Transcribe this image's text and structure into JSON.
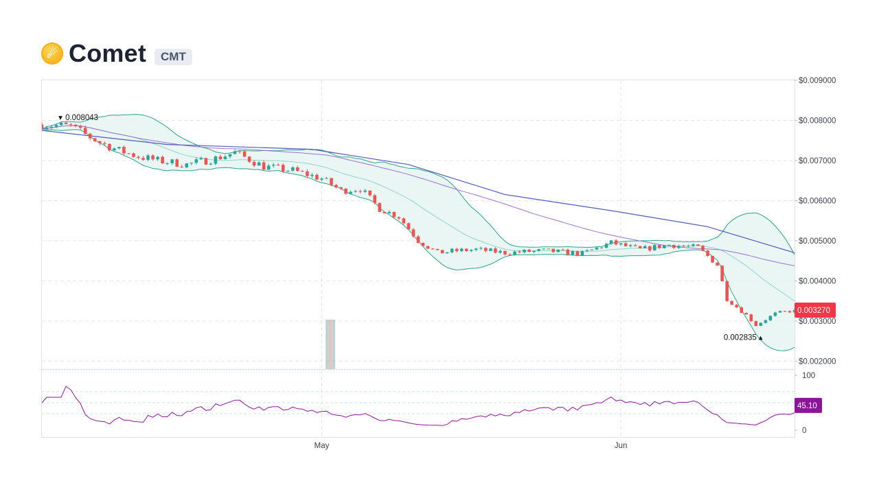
{
  "header": {
    "name": "Comet",
    "symbol": "CMT",
    "logo_icon": "comet-coin-icon"
  },
  "chart_data": {
    "type": "candlestick",
    "price_axis": {
      "ylim": [
        0.0018,
        0.009
      ],
      "ticks": [
        "$0.009000",
        "$0.008000",
        "$0.007000",
        "$0.006000",
        "$0.005000",
        "$0.004000",
        "$0.003000",
        "$0.002000"
      ],
      "tick_values": [
        0.009,
        0.008,
        0.007,
        0.006,
        0.005,
        0.004,
        0.003,
        0.002
      ]
    },
    "x_axis": {
      "labels": [
        "May",
        "Jun"
      ],
      "label_dates": [
        "2024-05-01",
        "2024-06-01"
      ],
      "range": [
        "2024-04-02",
        "2024-06-19"
      ]
    },
    "high_annotation": {
      "text": "0.008043",
      "value": 0.008043,
      "date": "2024-04-04"
    },
    "low_annotation": {
      "text": "0.002835",
      "value": 0.002835,
      "date": "2024-06-15"
    },
    "last_price": {
      "text": "0.003270",
      "value": 0.00327,
      "color": "#f23645"
    },
    "price_anchors": [
      [
        "2024-04-02",
        0.0079
      ],
      [
        "2024-04-05",
        0.00785
      ],
      [
        "2024-04-08",
        0.00745
      ],
      [
        "2024-04-10",
        0.00725
      ],
      [
        "2024-04-12",
        0.0071
      ],
      [
        "2024-04-14",
        0.007
      ],
      [
        "2024-04-17",
        0.0069
      ],
      [
        "2024-04-20",
        0.00705
      ],
      [
        "2024-04-22",
        0.0072
      ],
      [
        "2024-04-25",
        0.00685
      ],
      [
        "2024-04-28",
        0.00675
      ],
      [
        "2024-05-01",
        0.00655
      ],
      [
        "2024-05-03",
        0.00625
      ],
      [
        "2024-05-05",
        0.0063
      ],
      [
        "2024-05-07",
        0.0058
      ],
      [
        "2024-05-09",
        0.0056
      ],
      [
        "2024-05-11",
        0.005
      ],
      [
        "2024-05-13",
        0.0047
      ],
      [
        "2024-05-15",
        0.00475
      ],
      [
        "2024-05-17",
        0.00478
      ],
      [
        "2024-05-20",
        0.0047
      ],
      [
        "2024-05-24",
        0.00475
      ],
      [
        "2024-05-28",
        0.00468
      ],
      [
        "2024-05-31",
        0.00495
      ],
      [
        "2024-06-03",
        0.00478
      ],
      [
        "2024-06-06",
        0.0049
      ],
      [
        "2024-06-09",
        0.00483
      ],
      [
        "2024-06-11",
        0.0044
      ],
      [
        "2024-06-12",
        0.00355
      ],
      [
        "2024-06-14",
        0.00315
      ],
      [
        "2024-06-15",
        0.0029
      ],
      [
        "2024-06-17",
        0.00318
      ],
      [
        "2024-06-19",
        0.00327
      ]
    ],
    "sma_long": [
      [
        "2024-04-02",
        0.00775
      ],
      [
        "2024-04-15",
        0.0074
      ],
      [
        "2024-04-30",
        0.00728
      ],
      [
        "2024-05-10",
        0.0069
      ],
      [
        "2024-05-20",
        0.00615
      ],
      [
        "2024-05-31",
        0.00575
      ],
      [
        "2024-06-10",
        0.00535
      ],
      [
        "2024-06-19",
        0.0047
      ]
    ],
    "rsi": {
      "value": "45.10",
      "color": "#8e1599",
      "ticks": [
        "100",
        "0"
      ],
      "range": [
        0,
        100
      ],
      "upper_band": 70,
      "lower_band": 30
    },
    "colors": {
      "up": "#26a69a",
      "down": "#ef5350",
      "band_fill": "#e6f4f1",
      "band_line": "#2aa388",
      "basis": "#8ed6c6",
      "sma_mid": "#9c6fcf",
      "sma_long": "#4e5bbf",
      "grid": "#e3e6ec"
    }
  }
}
